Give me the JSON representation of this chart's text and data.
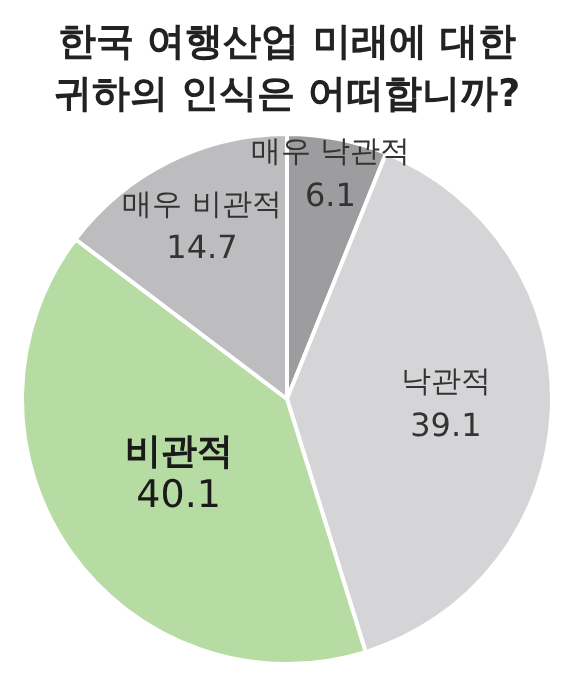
{
  "chart_data": {
    "type": "pie",
    "title": "한국 여행산업 미래에 대한 귀하의 인식은 어떠합니까?",
    "categories": [
      "매우 낙관적",
      "낙관적",
      "비관적",
      "매우 비관적"
    ],
    "values": [
      6.1,
      39.1,
      40.1,
      14.7
    ],
    "colors": [
      "#9d9d9f",
      "#d5d5d7",
      "#b7dca3",
      "#bdbdbf"
    ],
    "data_labels": true,
    "legend": false
  }
}
